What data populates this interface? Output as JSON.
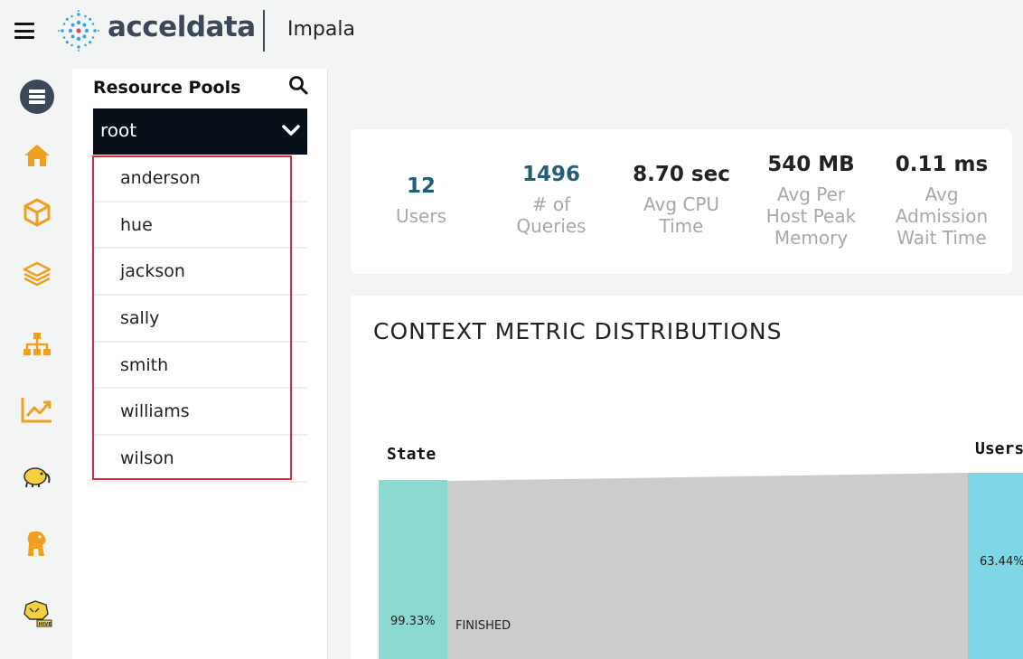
{
  "header": {
    "brand": "acceldata",
    "app_title": "Impala"
  },
  "rail": {
    "items": [
      {
        "name": "server-icon"
      },
      {
        "name": "home-icon"
      },
      {
        "name": "cube-icon"
      },
      {
        "name": "layers-icon"
      },
      {
        "name": "sitemap-icon"
      },
      {
        "name": "trend-chart-icon"
      },
      {
        "name": "hadoop-elephant-icon"
      },
      {
        "name": "elephant-icon"
      },
      {
        "name": "hive-icon"
      }
    ],
    "accent": "#f0a020"
  },
  "resource_pools": {
    "title": "Resource Pools",
    "selected": "root",
    "items": [
      "anderson",
      "hue",
      "jackson",
      "sally",
      "smith",
      "williams",
      "wilson"
    ]
  },
  "stats": [
    {
      "value": "12",
      "label": "Users",
      "value_color": "#1f5f7a"
    },
    {
      "value": "1496",
      "label": "# of Queries",
      "value_color": "#1f5f7a"
    },
    {
      "value": "8.70 sec",
      "label": "Avg CPU Time",
      "value_color": "#222222"
    },
    {
      "value": "540 MB",
      "label": "Avg Per Host Peak Memory",
      "value_color": "#222222"
    },
    {
      "value": "0.11 ms",
      "label": "Avg Admission Wait Time",
      "value_color": "#222222"
    }
  ],
  "distribution": {
    "title": "CONTEXT METRIC DISTRIBUTIONS",
    "left_axis": "State",
    "right_axis": "Users",
    "left_node_pct": "99.33%",
    "flow_label": "FINISHED",
    "right_node_pct": "63.44%",
    "left_color": "#8cd9d2",
    "right_color": "#7fd6e4",
    "flow_color": "#cccccc"
  }
}
